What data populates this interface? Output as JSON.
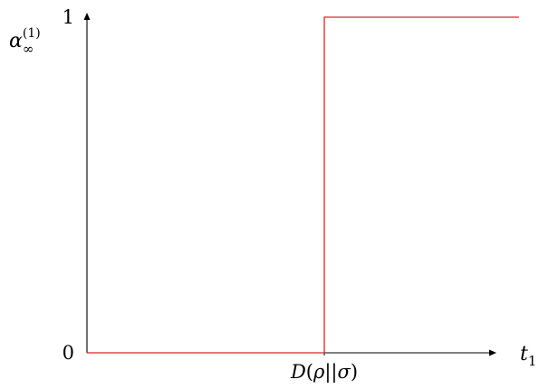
{
  "chart_data": {
    "type": "line",
    "title": "",
    "xlabel": "t",
    "xlabel_subscript": "1",
    "ylabel": "α",
    "ylabel_subscript": "∞",
    "ylabel_superscript": "(1)",
    "xlim": [
      0,
      2
    ],
    "ylim": [
      0,
      1
    ],
    "grid": false,
    "xticks": [
      {
        "value": 1,
        "label_parts": [
          "D(",
          "ρ",
          "||",
          "σ",
          ")"
        ]
      }
    ],
    "yticks": [
      {
        "value": 0,
        "label": "0"
      },
      {
        "value": 1,
        "label": "1"
      }
    ],
    "series": [
      {
        "color": "#d62728",
        "x": [
          0,
          1,
          1,
          1.82
        ],
        "y": [
          0,
          0,
          1,
          1
        ]
      }
    ]
  }
}
